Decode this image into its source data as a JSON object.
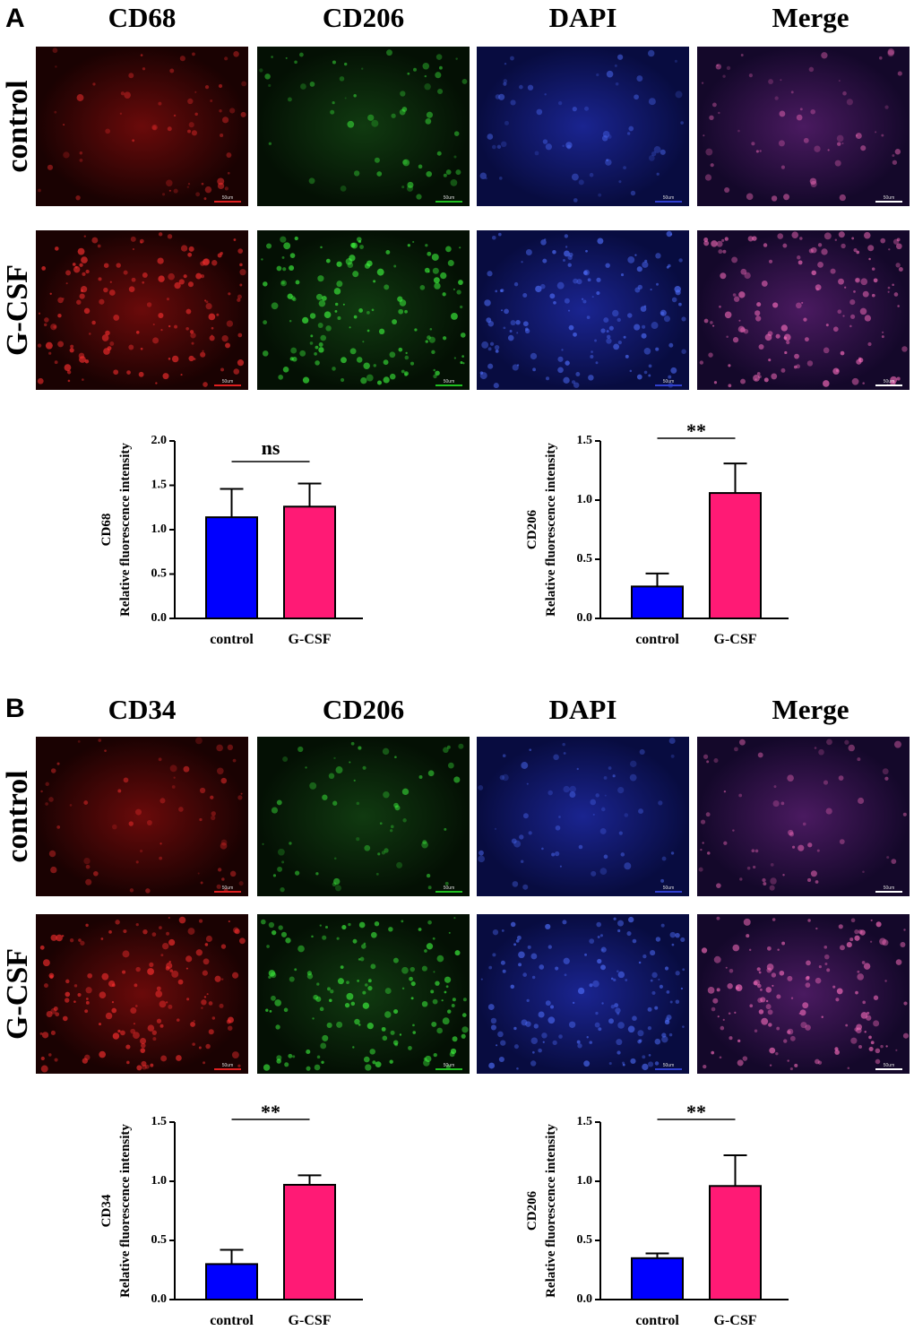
{
  "scale_bar_label": "50um",
  "panels": [
    {
      "letter": "A",
      "columns": [
        "CD68",
        "CD206",
        "DAPI",
        "Merge"
      ],
      "rows": [
        "control",
        "G-CSF"
      ],
      "charts": [
        {
          "type": "bar",
          "ylabel": "CD68",
          "ylabel_sub": "Relative fluorescence intensity",
          "categories": [
            "control",
            "G-CSF"
          ],
          "values": [
            1.14,
            1.26
          ],
          "errors": [
            0.32,
            0.26
          ],
          "colors": [
            "#0000ff",
            "#ff1a75"
          ],
          "significance": "ns",
          "ylim": [
            0,
            2
          ],
          "yticks": [
            {
              "value": 0,
              "label": "0.0"
            },
            0.5,
            {
              "value": 1,
              "label": "1.0"
            },
            1.5,
            {
              "value": 2,
              "label": "2.0"
            }
          ]
        },
        {
          "type": "bar",
          "ylabel": "CD206",
          "ylabel_sub": "Relative fluorescence intensity",
          "categories": [
            "control",
            "G-CSF"
          ],
          "values": [
            0.27,
            1.06
          ],
          "errors": [
            0.11,
            0.25
          ],
          "colors": [
            "#0000ff",
            "#ff1a75"
          ],
          "significance": "**",
          "ylim": [
            0,
            1.5
          ],
          "yticks": [
            {
              "value": 0,
              "label": "0.0"
            },
            0.5,
            {
              "value": 1,
              "label": "1.0"
            },
            1.5
          ]
        }
      ]
    },
    {
      "letter": "B",
      "columns": [
        "CD34",
        "CD206",
        "DAPI",
        "Merge"
      ],
      "rows": [
        "control",
        "G-CSF"
      ],
      "charts": [
        {
          "type": "bar",
          "ylabel": "CD34",
          "ylabel_sub": "Relative fluorescence intensity",
          "categories": [
            "control",
            "G-CSF"
          ],
          "values": [
            0.3,
            0.97
          ],
          "errors": [
            0.12,
            0.08
          ],
          "colors": [
            "#0000ff",
            "#ff1a75"
          ],
          "significance": "**",
          "ylim": [
            0,
            1.5
          ],
          "yticks": [
            {
              "value": 0,
              "label": "0.0"
            },
            0.5,
            {
              "value": 1,
              "label": "1.0"
            },
            1.5
          ]
        },
        {
          "type": "bar",
          "ylabel": "CD206",
          "ylabel_sub": "Relative fluorescence intensity",
          "categories": [
            "control",
            "G-CSF"
          ],
          "values": [
            0.35,
            0.96
          ],
          "errors": [
            0.04,
            0.26
          ],
          "colors": [
            "#0000ff",
            "#ff1a75"
          ],
          "significance": "**",
          "ylim": [
            0,
            1.5
          ],
          "yticks": [
            {
              "value": 0,
              "label": "0.0"
            },
            0.5,
            {
              "value": 1,
              "label": "1.0"
            },
            1.5
          ]
        }
      ]
    }
  ]
}
